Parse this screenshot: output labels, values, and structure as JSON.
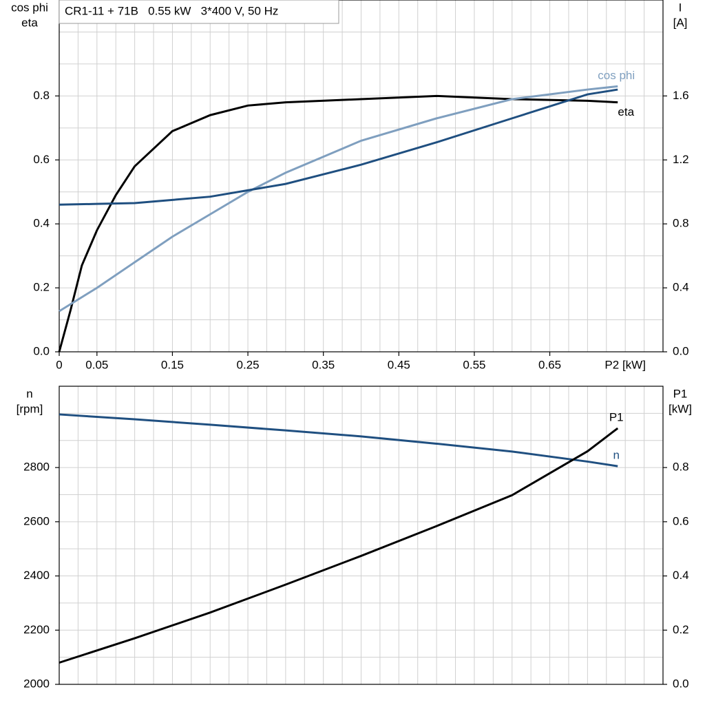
{
  "chart_data": [
    {
      "type": "line",
      "title": "CR1-11 + 71B   0.55 kW   3*400 V, 50 Hz",
      "x_label": "P2 [kW]",
      "y_label": [
        "cos phi",
        "eta"
      ],
      "y2_label": [
        "I",
        "[A]"
      ],
      "xlim": [
        0,
        0.8
      ],
      "xticks": [
        {
          "value": 0,
          "label": "0"
        },
        0.05,
        0.15,
        0.25,
        0.35,
        0.45,
        0.55,
        0.65
      ],
      "ylim": [
        0,
        1.1
      ],
      "yticks": [
        {
          "value": 0,
          "label": "0.0"
        },
        0.2,
        0.4,
        0.6,
        0.8
      ],
      "y2lim": [
        0,
        2.2
      ],
      "y2ticks": [
        {
          "value": 0,
          "label": "0.0"
        },
        0.4,
        0.8,
        1.2,
        1.6
      ],
      "grid": true,
      "xgrid_step": 0.025,
      "ygrid_step": 0.1,
      "series": [
        {
          "name": "eta",
          "color": "#000000",
          "x": [
            0,
            0.015,
            0.03,
            0.05,
            0.075,
            0.1,
            0.15,
            0.2,
            0.25,
            0.3,
            0.4,
            0.5,
            0.6,
            0.7,
            0.74
          ],
          "values": [
            0,
            0.13,
            0.27,
            0.38,
            0.49,
            0.58,
            0.69,
            0.74,
            0.77,
            0.78,
            0.79,
            0.8,
            0.79,
            0.785,
            0.78
          ]
        },
        {
          "name": "cos phi",
          "color": "#7f9fbf",
          "x": [
            0,
            0.05,
            0.1,
            0.15,
            0.2,
            0.25,
            0.3,
            0.4,
            0.5,
            0.6,
            0.7,
            0.74
          ],
          "values": [
            0.127,
            0.2,
            0.28,
            0.36,
            0.43,
            0.5,
            0.56,
            0.66,
            0.73,
            0.79,
            0.82,
            0.83
          ]
        },
        {
          "color": "#1f4f80",
          "axis": "y2",
          "x": [
            0,
            0.05,
            0.1,
            0.15,
            0.2,
            0.25,
            0.3,
            0.4,
            0.5,
            0.6,
            0.7,
            0.74
          ],
          "values": [
            0.92,
            0.925,
            0.93,
            0.95,
            0.97,
            1.01,
            1.05,
            1.17,
            1.31,
            1.46,
            1.61,
            1.64
          ]
        }
      ]
    },
    {
      "type": "line",
      "y_label": [
        "n",
        "[rpm]"
      ],
      "y2_label": [
        "P1",
        "[kW]"
      ],
      "xlim": [
        0,
        0.8
      ],
      "ylim": [
        2000,
        3100
      ],
      "yticks": [
        2000,
        2200,
        2400,
        2600,
        2800
      ],
      "y2lim": [
        0,
        1.1
      ],
      "y2ticks": [
        {
          "value": 0,
          "label": "0.0"
        },
        0.2,
        0.4,
        0.6,
        0.8
      ],
      "grid": true,
      "xgrid_step": 0.025,
      "ygrid_step": 100,
      "series": [
        {
          "name": "n",
          "color": "#1f4f80",
          "x": [
            0,
            0.1,
            0.2,
            0.3,
            0.4,
            0.5,
            0.6,
            0.7,
            0.74
          ],
          "values": [
            2996,
            2978,
            2958,
            2937,
            2915,
            2888,
            2859,
            2822,
            2805
          ]
        },
        {
          "name": "P1",
          "color": "#000000",
          "axis": "y2",
          "x": [
            0,
            0.1,
            0.2,
            0.3,
            0.4,
            0.5,
            0.6,
            0.7,
            0.74
          ],
          "values": [
            0.08,
            0.17,
            0.265,
            0.368,
            0.474,
            0.584,
            0.698,
            0.86,
            0.945
          ]
        }
      ]
    }
  ]
}
